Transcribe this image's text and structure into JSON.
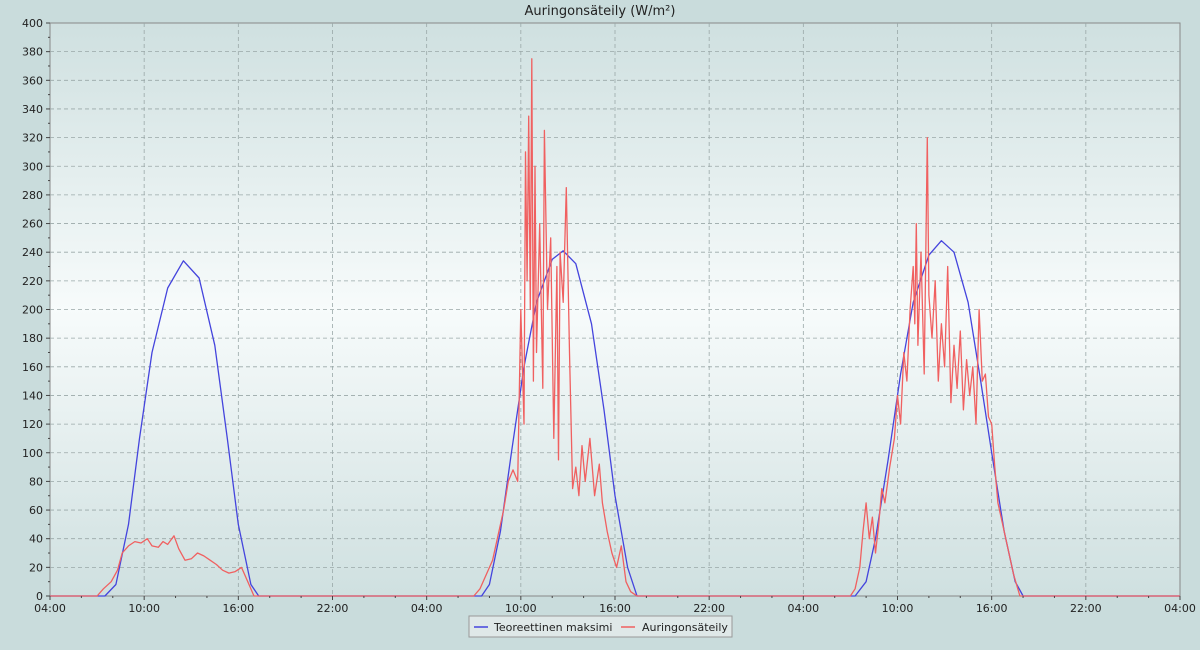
{
  "chart_data": {
    "type": "line",
    "title": "Auringonsäteily (W/m²)",
    "xlabel": "",
    "ylabel": "",
    "x_unit": "hours since first tick (04:00)",
    "xlim": [
      0,
      72
    ],
    "ylim": [
      0,
      400
    ],
    "y_ticks": [
      0,
      20,
      40,
      60,
      80,
      100,
      120,
      140,
      160,
      180,
      200,
      220,
      240,
      260,
      280,
      300,
      320,
      340,
      360,
      380,
      400
    ],
    "x_ticks": [
      {
        "x": 0,
        "label": "04:00"
      },
      {
        "x": 6,
        "label": "10:00"
      },
      {
        "x": 12,
        "label": "16:00"
      },
      {
        "x": 18,
        "label": "22:00"
      },
      {
        "x": 24,
        "label": "04:00"
      },
      {
        "x": 30,
        "label": "10:00"
      },
      {
        "x": 36,
        "label": "16:00"
      },
      {
        "x": 42,
        "label": "22:00"
      },
      {
        "x": 48,
        "label": "04:00"
      },
      {
        "x": 54,
        "label": "10:00"
      },
      {
        "x": 60,
        "label": "16:00"
      },
      {
        "x": 66,
        "label": "22:00"
      },
      {
        "x": 72,
        "label": "04:00"
      }
    ],
    "grid": true,
    "legend_position": "bottom-center",
    "series": [
      {
        "name": "Teoreettinen maksimi",
        "color": "#4444dd",
        "points": [
          [
            0,
            0
          ],
          [
            3.5,
            0
          ],
          [
            4.2,
            8
          ],
          [
            5.0,
            50
          ],
          [
            5.7,
            110
          ],
          [
            6.5,
            170
          ],
          [
            7.5,
            215
          ],
          [
            8.5,
            234
          ],
          [
            9.5,
            222
          ],
          [
            10.5,
            175
          ],
          [
            11.3,
            110
          ],
          [
            12.0,
            50
          ],
          [
            12.8,
            8
          ],
          [
            13.3,
            0
          ],
          [
            27.5,
            0
          ],
          [
            28.0,
            8
          ],
          [
            28.7,
            45
          ],
          [
            29.4,
            100
          ],
          [
            30.2,
            160
          ],
          [
            31.0,
            205
          ],
          [
            32.0,
            235
          ],
          [
            32.7,
            241
          ],
          [
            33.5,
            232
          ],
          [
            34.5,
            190
          ],
          [
            35.3,
            130
          ],
          [
            36.0,
            70
          ],
          [
            36.8,
            20
          ],
          [
            37.4,
            0
          ],
          [
            51.3,
            0
          ],
          [
            52.0,
            10
          ],
          [
            52.6,
            40
          ],
          [
            53.4,
            95
          ],
          [
            54.2,
            155
          ],
          [
            55.0,
            205
          ],
          [
            56.0,
            238
          ],
          [
            56.8,
            248
          ],
          [
            57.6,
            240
          ],
          [
            58.5,
            205
          ],
          [
            59.3,
            150
          ],
          [
            60.0,
            100
          ],
          [
            60.8,
            45
          ],
          [
            61.5,
            10
          ],
          [
            62.0,
            0
          ],
          [
            72,
            0
          ]
        ]
      },
      {
        "name": "Auringonsäteily",
        "color": "#f06060",
        "points": [
          [
            0,
            0
          ],
          [
            3.0,
            0
          ],
          [
            3.4,
            5
          ],
          [
            3.9,
            10
          ],
          [
            4.3,
            18
          ],
          [
            4.6,
            30
          ],
          [
            5.0,
            35
          ],
          [
            5.4,
            38
          ],
          [
            5.8,
            37
          ],
          [
            6.2,
            40
          ],
          [
            6.5,
            35
          ],
          [
            6.9,
            34
          ],
          [
            7.2,
            38
          ],
          [
            7.5,
            36
          ],
          [
            7.9,
            42
          ],
          [
            8.2,
            33
          ],
          [
            8.6,
            25
          ],
          [
            9.0,
            26
          ],
          [
            9.4,
            30
          ],
          [
            9.8,
            28
          ],
          [
            10.2,
            25
          ],
          [
            10.6,
            22
          ],
          [
            11.0,
            18
          ],
          [
            11.4,
            16
          ],
          [
            11.8,
            17
          ],
          [
            12.2,
            20
          ],
          [
            12.6,
            10
          ],
          [
            13.0,
            0
          ],
          [
            27.0,
            0
          ],
          [
            27.4,
            5
          ],
          [
            27.8,
            15
          ],
          [
            28.2,
            25
          ],
          [
            28.6,
            45
          ],
          [
            28.9,
            60
          ],
          [
            29.2,
            80
          ],
          [
            29.5,
            88
          ],
          [
            29.8,
            80
          ],
          [
            30.0,
            200
          ],
          [
            30.2,
            120
          ],
          [
            30.3,
            310
          ],
          [
            30.4,
            220
          ],
          [
            30.5,
            335
          ],
          [
            30.6,
            200
          ],
          [
            30.7,
            375
          ],
          [
            30.8,
            150
          ],
          [
            30.9,
            300
          ],
          [
            31.0,
            170
          ],
          [
            31.2,
            260
          ],
          [
            31.4,
            145
          ],
          [
            31.5,
            325
          ],
          [
            31.7,
            200
          ],
          [
            31.9,
            250
          ],
          [
            32.1,
            110
          ],
          [
            32.3,
            230
          ],
          [
            32.4,
            95
          ],
          [
            32.5,
            240
          ],
          [
            32.7,
            205
          ],
          [
            32.9,
            285
          ],
          [
            33.1,
            170
          ],
          [
            33.3,
            75
          ],
          [
            33.5,
            90
          ],
          [
            33.7,
            70
          ],
          [
            33.9,
            105
          ],
          [
            34.1,
            80
          ],
          [
            34.4,
            110
          ],
          [
            34.7,
            70
          ],
          [
            35.0,
            92
          ],
          [
            35.2,
            65
          ],
          [
            35.5,
            45
          ],
          [
            35.8,
            30
          ],
          [
            36.1,
            20
          ],
          [
            36.4,
            35
          ],
          [
            36.7,
            10
          ],
          [
            37.0,
            3
          ],
          [
            37.4,
            0
          ],
          [
            51.0,
            0
          ],
          [
            51.3,
            5
          ],
          [
            51.6,
            20
          ],
          [
            51.8,
            45
          ],
          [
            52.0,
            65
          ],
          [
            52.2,
            40
          ],
          [
            52.4,
            55
          ],
          [
            52.6,
            30
          ],
          [
            52.8,
            50
          ],
          [
            53.0,
            75
          ],
          [
            53.2,
            65
          ],
          [
            53.5,
            90
          ],
          [
            53.8,
            110
          ],
          [
            54.0,
            140
          ],
          [
            54.2,
            120
          ],
          [
            54.4,
            170
          ],
          [
            54.6,
            150
          ],
          [
            54.8,
            200
          ],
          [
            55.0,
            230
          ],
          [
            55.1,
            190
          ],
          [
            55.2,
            260
          ],
          [
            55.3,
            175
          ],
          [
            55.5,
            240
          ],
          [
            55.7,
            155
          ],
          [
            55.9,
            320
          ],
          [
            56.0,
            210
          ],
          [
            56.2,
            180
          ],
          [
            56.4,
            220
          ],
          [
            56.6,
            150
          ],
          [
            56.8,
            190
          ],
          [
            57.0,
            160
          ],
          [
            57.2,
            230
          ],
          [
            57.4,
            135
          ],
          [
            57.6,
            175
          ],
          [
            57.8,
            145
          ],
          [
            58.0,
            185
          ],
          [
            58.2,
            130
          ],
          [
            58.4,
            165
          ],
          [
            58.6,
            140
          ],
          [
            58.8,
            160
          ],
          [
            59.0,
            120
          ],
          [
            59.2,
            200
          ],
          [
            59.4,
            150
          ],
          [
            59.6,
            155
          ],
          [
            59.8,
            125
          ],
          [
            60.0,
            120
          ],
          [
            60.2,
            90
          ],
          [
            60.4,
            65
          ],
          [
            60.6,
            55
          ],
          [
            60.8,
            45
          ],
          [
            61.1,
            30
          ],
          [
            61.4,
            15
          ],
          [
            61.8,
            0
          ],
          [
            72,
            0
          ]
        ]
      }
    ]
  }
}
